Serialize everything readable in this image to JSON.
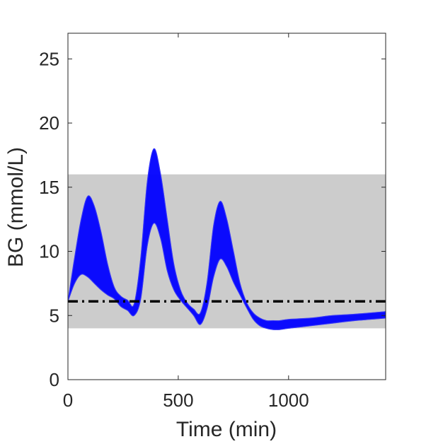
{
  "chart_data": {
    "type": "line",
    "xlabel": "Time (min)",
    "ylabel": "BG (mmol/L)",
    "xlim": [
      0,
      1440
    ],
    "ylim": [
      0,
      27
    ],
    "xticks": [
      0,
      500,
      1000
    ],
    "yticks": [
      0,
      5,
      10,
      15,
      20,
      25
    ],
    "target_range": [
      4,
      16
    ],
    "reference_line": 6.1,
    "band_color": "#cccccc",
    "series_color": "#0000ff",
    "reference_color": "#000000",
    "envelope": {
      "x": [
        0,
        30,
        60,
        90,
        120,
        150,
        180,
        210,
        240,
        270,
        300,
        330,
        360,
        390,
        420,
        450,
        480,
        510,
        540,
        570,
        600,
        630,
        660,
        690,
        720,
        750,
        780,
        810,
        840,
        870,
        900,
        930,
        960,
        1000,
        1100,
        1200,
        1300,
        1440
      ],
      "upper": [
        6.1,
        9.5,
        12.5,
        14.3,
        13.5,
        11.5,
        9.0,
        7.2,
        6.5,
        6.2,
        5.9,
        9.5,
        15.5,
        18.0,
        16.0,
        12.5,
        9.0,
        7.0,
        6.0,
        5.5,
        5.2,
        7.5,
        12.0,
        13.9,
        12.5,
        10.0,
        7.5,
        6.0,
        5.2,
        4.8,
        4.6,
        4.6,
        4.6,
        4.7,
        4.8,
        5.0,
        5.1,
        5.3
      ],
      "lower": [
        6.1,
        7.5,
        8.2,
        8.0,
        7.5,
        7.0,
        6.6,
        6.3,
        5.7,
        5.4,
        5.0,
        6.3,
        10.5,
        12.2,
        11.0,
        8.5,
        7.0,
        6.2,
        5.6,
        5.0,
        4.3,
        5.5,
        8.0,
        9.4,
        8.8,
        7.6,
        6.6,
        5.6,
        4.7,
        4.2,
        4.0,
        3.9,
        3.9,
        4.0,
        4.2,
        4.4,
        4.6,
        4.8
      ]
    }
  }
}
